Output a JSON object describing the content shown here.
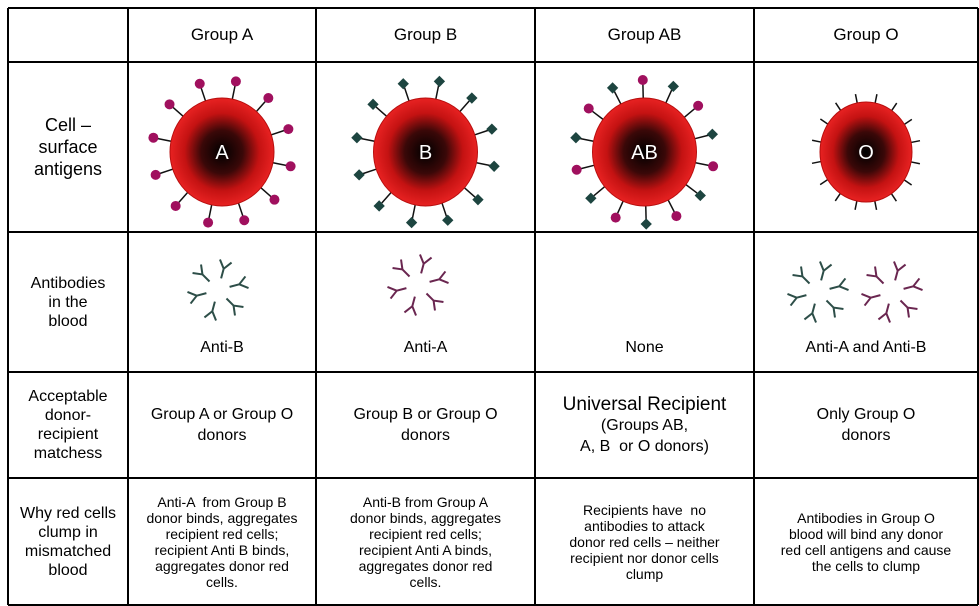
{
  "table": {
    "header": [
      "Group A",
      "Group B",
      "Group AB",
      "Group O"
    ],
    "rows": [
      {
        "label": [
          "Cell –",
          "surface",
          "antigens"
        ],
        "cells": [
          "A",
          "B",
          "AB",
          "O"
        ]
      },
      {
        "label": [
          "Antibodies",
          "in the",
          "blood"
        ],
        "cells": [
          "Anti-B",
          "Anti-A",
          "None",
          "Anti-A and Anti-B"
        ]
      },
      {
        "label": [
          "Acceptable",
          "donor-",
          "recipient",
          "matchess"
        ],
        "cells": [
          [
            "Group A or Group O",
            "donors"
          ],
          [
            "Group B or Group O",
            "donors"
          ],
          [
            "Universal Recipient",
            "(Groups AB,",
            "A, B  or O donors)"
          ],
          [
            "Only Group O",
            "donors"
          ]
        ]
      },
      {
        "label": [
          "Why red cells",
          "clump in",
          "mismatched",
          "blood"
        ],
        "cells": [
          [
            "Anti-A  from Group B",
            "donor binds, aggregates",
            "recipient red cells;",
            "recipient Anti B binds,",
            "aggregates donor red",
            "cells."
          ],
          [
            "Anti-B from Group A",
            "donor binds, aggregates",
            "recipient red cells;",
            "recipient Anti A binds,",
            "aggregates donor red",
            "cells."
          ],
          [
            "Recipients have  no",
            "antibodies to attack",
            "donor red cells – neither",
            "recipient nor donor cells",
            "clump"
          ],
          [
            "Antibodies in Group O",
            "blood will bind any donor",
            "red cell antigens and cause",
            "the cells to clump"
          ]
        ]
      }
    ]
  }
}
